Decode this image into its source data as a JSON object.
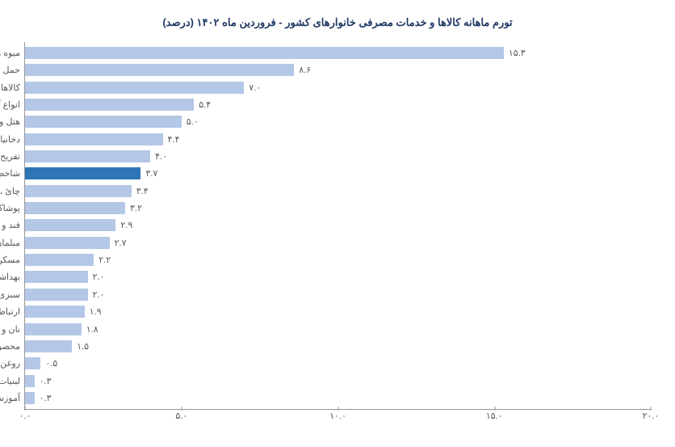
{
  "chart": {
    "type": "bar-horizontal",
    "title": "تورم ماهانه کالاها و خدمات مصرفی خانوارهای کشور - فروردین ماه ۱۴۰۲ (درصد)",
    "title_color": "#1f3864",
    "title_fontsize": 13,
    "background_color": "#ffffff",
    "axis_color": "#999999",
    "label_color": "#595959",
    "label_fontsize": 11,
    "xlim": [
      0,
      20
    ],
    "xticks": [
      0,
      5,
      10,
      15,
      20
    ],
    "xtick_labels": [
      "۰.۰",
      "۵.۰",
      "۱۰.۰",
      "۱۵.۰",
      "۲۰.۰"
    ],
    "bar_color_default": "#b4c7e7",
    "bar_color_highlight": "#2e75b6",
    "items": [
      {
        "label": "میوه و خشکبار",
        "value": 15.3,
        "display": "۱۵.۳",
        "highlight": false
      },
      {
        "label": "حمل ونقل",
        "value": 8.6,
        "display": "۸.۶",
        "highlight": false
      },
      {
        "label": "کالاها و خدمات متفرقه",
        "value": 7.0,
        "display": "۷.۰",
        "highlight": false
      },
      {
        "label": "انواع گوشت قرمز و سفید",
        "value": 5.4,
        "display": "۵.۴",
        "highlight": false
      },
      {
        "label": "هتل و رستوران",
        "value": 5.0,
        "display": "۵.۰",
        "highlight": false
      },
      {
        "label": "دخانیات",
        "value": 4.4,
        "display": "۴.۴",
        "highlight": false
      },
      {
        "label": "تفریح و فرهنگ",
        "value": 4.0,
        "display": "۴.۰",
        "highlight": false
      },
      {
        "label": "شاخص کل",
        "value": 3.7,
        "display": "۳.۷",
        "highlight": true
      },
      {
        "label": "چائ ، قهوه ، کاکائو",
        "value": 3.4,
        "display": "۳.۴",
        "highlight": false
      },
      {
        "label": "پوشاک و کفش",
        "value": 3.2,
        "display": "۳.۲",
        "highlight": false
      },
      {
        "label": "قند و شکر و شیرینی‌ها",
        "value": 2.9,
        "display": "۲.۹",
        "highlight": false
      },
      {
        "label": "مبلمان و لوازم خانگی و نگهداری معمول آنها",
        "value": 2.7,
        "display": "۲.۷",
        "highlight": false
      },
      {
        "label": "مسکن ، آب ، برق ، گاز و سایر سوختها",
        "value": 2.2,
        "display": "۲.۲",
        "highlight": false
      },
      {
        "label": "بهداشت و درمان",
        "value": 2.0,
        "display": "۲.۰",
        "highlight": false
      },
      {
        "label": "سبزی‌ها وحبوبات",
        "value": 2.0,
        "display": "۲.۰",
        "highlight": false
      },
      {
        "label": "ارتباطات",
        "value": 1.9,
        "display": "۱.۹",
        "highlight": false
      },
      {
        "label": "نان و غلات",
        "value": 1.8,
        "display": "۱.۸",
        "highlight": false
      },
      {
        "label": "محصولات خوراکی طبقه بندئ نشده در جائ دیگر",
        "value": 1.5,
        "display": "۱.۵",
        "highlight": false
      },
      {
        "label": "روغن‌ها و چربی‌ها",
        "value": 0.5,
        "display": "۰.۵",
        "highlight": false
      },
      {
        "label": "لبنیات و تخم مرغ",
        "value": 0.3,
        "display": "۰.۳",
        "highlight": false
      },
      {
        "label": "آموزش",
        "value": 0.3,
        "display": "۰.۳",
        "highlight": false
      }
    ]
  }
}
